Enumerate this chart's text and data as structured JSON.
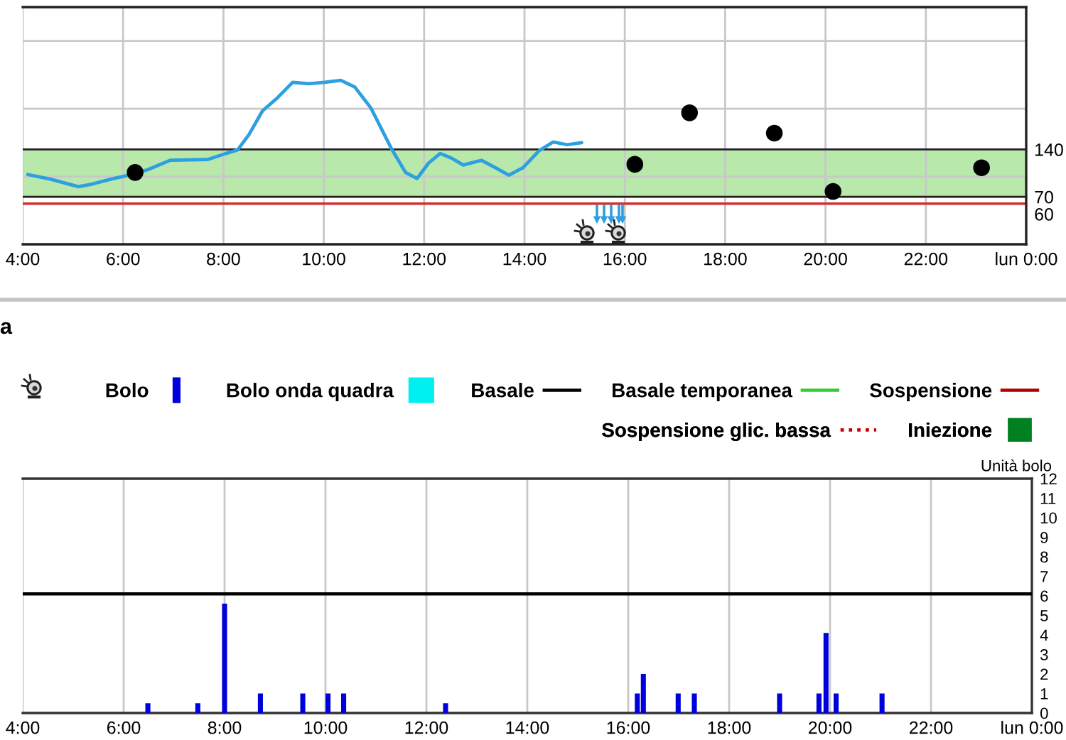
{
  "chart_data": [
    {
      "type": "line",
      "xlim": [
        4,
        24
      ],
      "xticks": [
        {
          "value": 4,
          "label": "4:00"
        },
        {
          "value": 6,
          "label": "6:00"
        },
        {
          "value": 8,
          "label": "8:00"
        },
        {
          "value": 10,
          "label": "10:00"
        },
        {
          "value": 12,
          "label": "12:00"
        },
        {
          "value": 14,
          "label": "14:00"
        },
        {
          "value": 16,
          "label": "16:00"
        },
        {
          "value": 18,
          "label": "18:00"
        },
        {
          "value": 20,
          "label": "20:00"
        },
        {
          "value": 22,
          "label": "22:00"
        },
        {
          "value": 24,
          "label": "lun 0:00"
        }
      ],
      "ylim": [
        0,
        350
      ],
      "yticks": [
        70,
        140,
        {
          "value": 100,
          "label": null
        },
        {
          "value": 200,
          "label": null
        },
        {
          "value": 300,
          "label": null
        }
      ],
      "grid": true,
      "bands": [
        {
          "axis": "y",
          "from": 70,
          "to": 140,
          "color": "#b9e8ab"
        }
      ],
      "ref_lines": [
        {
          "axis": "y",
          "value": 60,
          "label": "60",
          "color": "#d03030"
        }
      ],
      "series": [
        {
          "color": "#2e9fe0",
          "x": [
            4.1,
            4.56,
            5.11,
            5.39,
            5.75,
            6.12,
            6.49,
            6.94,
            7.68,
            8.05,
            8.28,
            8.51,
            8.78,
            9.06,
            9.38,
            9.7,
            10.02,
            10.34,
            10.62,
            10.94,
            11.35,
            11.63,
            11.86,
            12.09,
            12.32,
            12.55,
            12.78,
            13.14,
            13.42,
            13.69,
            13.97,
            14.29,
            14.57,
            14.85,
            15.14
          ],
          "values": [
            103,
            96,
            85,
            89,
            96,
            102,
            110,
            124,
            125,
            134,
            139,
            162,
            197,
            215,
            239,
            237,
            239,
            242,
            232,
            201,
            141,
            106,
            97,
            120,
            134,
            127,
            117,
            124,
            113,
            102,
            113,
            138,
            151,
            147,
            150
          ]
        },
        {
          "type": "scatter",
          "marker": "circle",
          "color": "#000000",
          "x": [
            6.24,
            16.2,
            17.29,
            18.98,
            20.15,
            23.11
          ],
          "values": [
            106,
            118,
            194,
            164,
            78,
            113
          ]
        }
      ]
    },
    {
      "type": "bar",
      "title": "a",
      "ylabel": "Unità bolo",
      "xlim": [
        4,
        24
      ],
      "xticks": [
        {
          "value": 4,
          "label": "4:00"
        },
        {
          "value": 6,
          "label": "6:00"
        },
        {
          "value": 8,
          "label": "8:00"
        },
        {
          "value": 10,
          "label": "10:00"
        },
        {
          "value": 12,
          "label": "12:00"
        },
        {
          "value": 14,
          "label": "14:00"
        },
        {
          "value": 16,
          "label": "16:00"
        },
        {
          "value": 18,
          "label": "18:00"
        },
        {
          "value": 20,
          "label": "20:00"
        },
        {
          "value": 22,
          "label": "22:00"
        },
        {
          "value": 24,
          "label": "lun 0:00"
        }
      ],
      "ylim": [
        0,
        12
      ],
      "yticks": [
        0,
        1,
        2,
        3,
        4,
        5,
        6,
        7,
        8,
        9,
        10,
        11,
        12
      ],
      "grid": "x",
      "legend": "top",
      "series": [
        {
          "name": "Bolo",
          "color": "#0000dd",
          "x": [
            6.48,
            7.47,
            8.0,
            8.71,
            9.55,
            10.05,
            10.36,
            12.38,
            16.18,
            16.3,
            16.99,
            17.31,
            19.0,
            19.78,
            19.92,
            20.12,
            21.03
          ],
          "values": [
            0.5,
            0.5,
            5.6,
            1,
            1,
            1,
            1,
            0.5,
            1,
            2,
            1,
            1,
            1,
            1,
            4.1,
            1,
            1
          ]
        },
        {
          "name": "Bolo onda quadra",
          "color": "#00f0f0"
        },
        {
          "name": "Basale",
          "type": "line",
          "color": "#000000",
          "x": [
            4,
            24
          ],
          "values": [
            6.1,
            6.1
          ]
        },
        {
          "name": "Basale temporanea",
          "type": "line",
          "color": "#33cc33"
        },
        {
          "name": "Sospensione",
          "type": "line",
          "color": "#b00000"
        },
        {
          "name": "Sospensione glic. bassa",
          "type": "line",
          "line_style": "dotted",
          "color": "#cc0000"
        },
        {
          "name": "Iniezione",
          "type": "scatter",
          "marker": "square",
          "color": "#008020"
        }
      ]
    }
  ]
}
